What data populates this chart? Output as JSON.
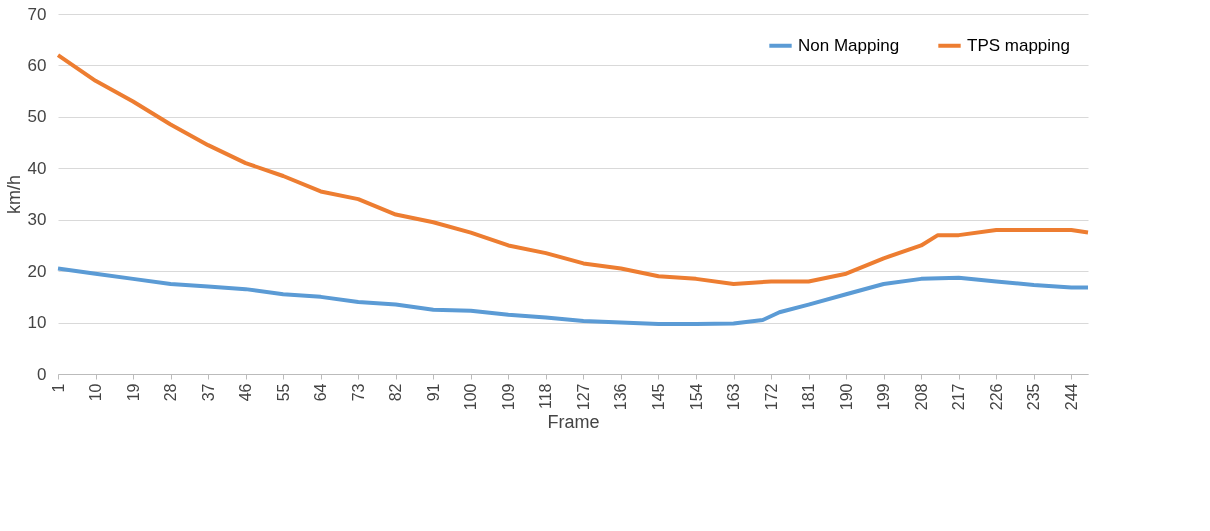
{
  "chart_data": {
    "type": "line",
    "xlabel": "Frame",
    "ylabel": "km/h",
    "xlim": [
      1,
      248
    ],
    "xticks": [
      1,
      10,
      19,
      28,
      37,
      46,
      55,
      64,
      73,
      82,
      91,
      100,
      109,
      118,
      127,
      136,
      145,
      154,
      163,
      172,
      181,
      190,
      199,
      208,
      217,
      226,
      235,
      244
    ],
    "ylim": [
      0,
      70
    ],
    "yticks": [
      0,
      10,
      20,
      30,
      40,
      50,
      60,
      70
    ],
    "grid": "y",
    "legend": "top right",
    "marker": "none",
    "line_style": "solid",
    "series": [
      {
        "name": "Non Mapping",
        "color": "#5b9bd5",
        "x": [
          1,
          10,
          19,
          28,
          37,
          46,
          55,
          64,
          73,
          82,
          91,
          100,
          109,
          118,
          127,
          136,
          145,
          154,
          163,
          170,
          174,
          181,
          190,
          199,
          208,
          217,
          226,
          235,
          244,
          248
        ],
        "values": [
          20.5,
          19.5,
          18.5,
          17.5,
          17,
          16.5,
          15.5,
          15,
          14,
          13.5,
          12.5,
          12.3,
          11.5,
          11,
          10.3,
          10,
          9.7,
          9.7,
          9.8,
          10.5,
          12,
          13.5,
          15.5,
          17.5,
          18.5,
          18.7,
          18,
          17.3,
          16.8,
          16.8
        ]
      },
      {
        "name": "TPS mapping",
        "color": "#ed7d31",
        "x": [
          1,
          10,
          19,
          28,
          37,
          46,
          55,
          64,
          73,
          82,
          91,
          100,
          109,
          118,
          127,
          136,
          145,
          154,
          163,
          172,
          181,
          190,
          199,
          208,
          212,
          217,
          226,
          235,
          244,
          248
        ],
        "values": [
          62,
          57,
          53,
          48.5,
          44.5,
          41,
          38.5,
          35.5,
          34,
          31,
          29.5,
          27.5,
          25,
          23.5,
          21.5,
          20.5,
          19,
          18.5,
          17.5,
          18,
          18,
          19.5,
          22.5,
          25,
          27,
          27,
          28,
          28,
          28,
          27.5
        ]
      }
    ]
  }
}
